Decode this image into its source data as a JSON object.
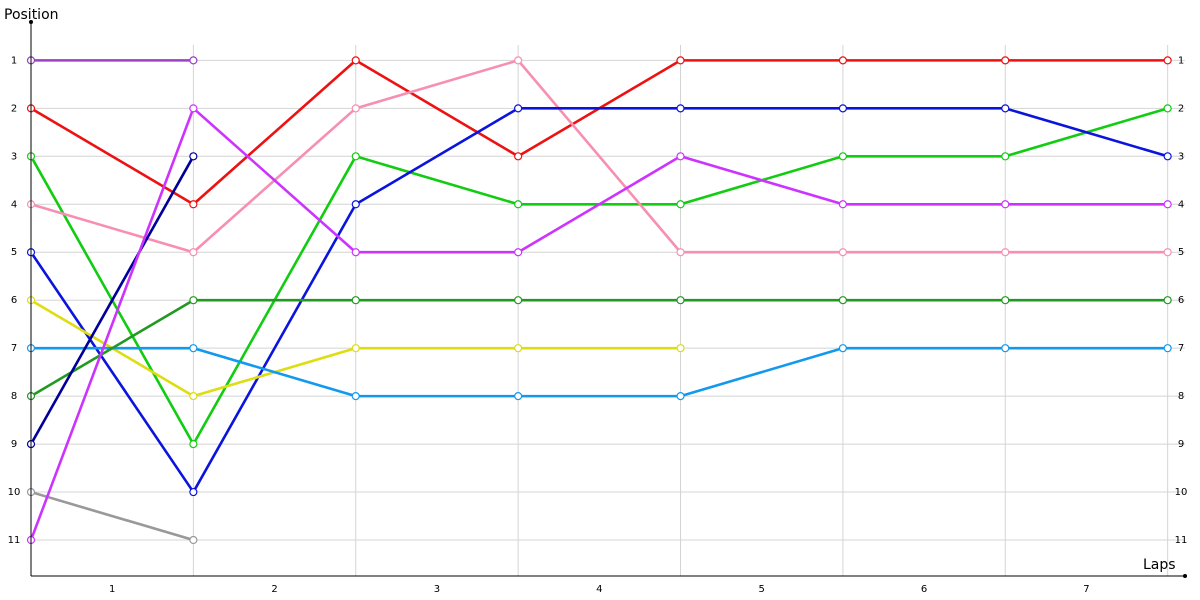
{
  "chart_data": {
    "type": "line",
    "y_label": "Position",
    "x_label": "Laps",
    "x": [
      0,
      1,
      2,
      3,
      4,
      5,
      6,
      7
    ],
    "xlim": [
      0,
      7.1
    ],
    "xticks": [
      {
        "value": 0.5,
        "label": "1"
      },
      {
        "value": 1.5,
        "label": "2"
      },
      {
        "value": 2.5,
        "label": "3"
      },
      {
        "value": 3.5,
        "label": "4"
      },
      {
        "value": 4.5,
        "label": "5"
      },
      {
        "value": 5.5,
        "label": "6"
      },
      {
        "value": 6.5,
        "label": "7"
      }
    ],
    "ylim": [
      11.75,
      0.2
    ],
    "yticks": [
      1,
      2,
      3,
      4,
      5,
      6,
      7,
      8,
      9,
      10,
      11
    ],
    "grid": true,
    "series": [
      {
        "color": "#9b3fc4",
        "values": [
          1,
          1,
          null,
          null,
          null,
          null,
          null,
          null
        ]
      },
      {
        "color": "#ee1111",
        "values": [
          2,
          4,
          1,
          3,
          1,
          1,
          1,
          1
        ]
      },
      {
        "color": "#11cc11",
        "values": [
          3,
          9,
          3,
          4,
          4,
          3,
          3,
          2
        ]
      },
      {
        "color": "#f78fb3",
        "values": [
          4,
          5,
          2,
          1,
          5,
          5,
          5,
          5
        ]
      },
      {
        "color": "#0a14dd",
        "values": [
          5,
          10,
          4,
          2,
          2,
          2,
          2,
          3
        ]
      },
      {
        "color": "#dddd11",
        "values": [
          6,
          8,
          7,
          7,
          7,
          null,
          null,
          null
        ]
      },
      {
        "color": "#1199ee",
        "values": [
          7,
          7,
          8,
          8,
          8,
          7,
          7,
          7
        ]
      },
      {
        "color": "#229922",
        "values": [
          8,
          6,
          6,
          6,
          6,
          6,
          6,
          6
        ]
      },
      {
        "color": "#000099",
        "values": [
          9,
          3,
          null,
          null,
          null,
          null,
          null,
          null
        ]
      },
      {
        "color": "#999999",
        "values": [
          10,
          11,
          null,
          null,
          null,
          null,
          null,
          null
        ]
      },
      {
        "color": "#cc33ff",
        "values": [
          11,
          2,
          5,
          5,
          3,
          4,
          4,
          4
        ]
      }
    ]
  }
}
